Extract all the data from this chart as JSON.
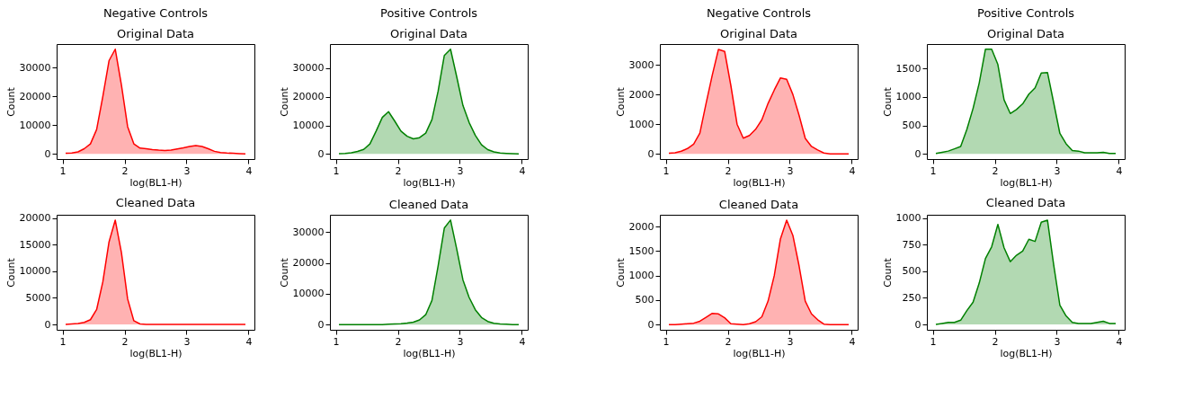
{
  "chart_data": [
    {
      "type": "area",
      "title": "Negative Controls",
      "subtitle": "Original Data",
      "xlabel": "log(BL1-H)",
      "ylabel": "Count",
      "x": [
        1.05,
        1.15,
        1.25,
        1.35,
        1.45,
        1.55,
        1.65,
        1.75,
        1.85,
        1.95,
        2.05,
        2.15,
        2.25,
        2.35,
        2.45,
        2.55,
        2.65,
        2.75,
        2.85,
        2.95,
        3.05,
        3.15,
        3.25,
        3.35,
        3.45,
        3.55,
        3.65,
        3.75,
        3.85,
        3.95
      ],
      "series": [
        {
          "color": "#ff0000",
          "values": [
            200,
            300,
            700,
            1800,
            3500,
            8500,
            20000,
            32500,
            36500,
            24000,
            9500,
            3500,
            2000,
            1800,
            1500,
            1300,
            1200,
            1300,
            1700,
            2100,
            2600,
            2900,
            2600,
            1800,
            900,
            500,
            300,
            200,
            100,
            0
          ]
        }
      ],
      "xlim": [
        0.905,
        4.095
      ],
      "ylim": [
        -1800,
        38300
      ],
      "xticks": [
        1,
        2,
        3,
        4
      ],
      "yticks": [
        0,
        10000,
        20000,
        30000
      ],
      "grid": false
    },
    {
      "type": "area",
      "title": "Positive Controls",
      "subtitle": "Original Data",
      "xlabel": "log(BL1-H)",
      "ylabel": "Count",
      "x": [
        1.05,
        1.15,
        1.25,
        1.35,
        1.45,
        1.55,
        1.65,
        1.75,
        1.85,
        1.95,
        2.05,
        2.15,
        2.25,
        2.35,
        2.45,
        2.55,
        2.65,
        2.75,
        2.85,
        2.95,
        3.05,
        3.15,
        3.25,
        3.35,
        3.45,
        3.55,
        3.65,
        3.75,
        3.85,
        3.95
      ],
      "series": [
        {
          "color": "#008000",
          "values": [
            100,
            200,
            400,
            900,
            1600,
            3500,
            8000,
            12800,
            14800,
            11500,
            8000,
            6200,
            5300,
            5700,
            7300,
            12000,
            22000,
            34500,
            36700,
            27000,
            17000,
            11000,
            6500,
            3200,
            1500,
            700,
            300,
            200,
            100,
            0
          ]
        }
      ],
      "xlim": [
        0.905,
        4.095
      ],
      "ylim": [
        -1800,
        38500
      ],
      "xticks": [
        1,
        2,
        3,
        4
      ],
      "yticks": [
        0,
        10000,
        20000,
        30000
      ],
      "grid": false
    },
    {
      "type": "area",
      "title": "Negative Controls",
      "subtitle": "Original Data",
      "xlabel": "log(BL1-H)",
      "ylabel": "Count",
      "x": [
        1.05,
        1.15,
        1.25,
        1.35,
        1.45,
        1.55,
        1.65,
        1.75,
        1.85,
        1.95,
        2.05,
        2.15,
        2.25,
        2.35,
        2.45,
        2.55,
        2.65,
        2.75,
        2.85,
        2.95,
        3.05,
        3.15,
        3.25,
        3.35,
        3.45,
        3.55,
        3.65,
        3.75,
        3.85,
        3.95
      ],
      "series": [
        {
          "color": "#ff0000",
          "values": [
            20,
            40,
            90,
            180,
            330,
            700,
            1700,
            2650,
            3520,
            3450,
            2300,
            1000,
            530,
            620,
            830,
            1150,
            1700,
            2150,
            2560,
            2510,
            2000,
            1300,
            520,
            250,
            130,
            30,
            0,
            0,
            0,
            0
          ]
        }
      ],
      "xlim": [
        0.905,
        4.095
      ],
      "ylim": [
        -175,
        3700
      ],
      "xticks": [
        1,
        2,
        3,
        4
      ],
      "yticks": [
        0,
        1000,
        2000,
        3000
      ],
      "grid": false
    },
    {
      "type": "area",
      "title": "Positive Controls",
      "subtitle": "Original Data",
      "xlabel": "log(BL1-H)",
      "ylabel": "Count",
      "x": [
        1.05,
        1.15,
        1.25,
        1.35,
        1.45,
        1.55,
        1.65,
        1.75,
        1.85,
        1.95,
        2.05,
        2.15,
        2.25,
        2.35,
        2.45,
        2.55,
        2.65,
        2.75,
        2.85,
        2.95,
        3.05,
        3.15,
        3.25,
        3.35,
        3.45,
        3.55,
        3.65,
        3.75,
        3.85,
        3.95
      ],
      "series": [
        {
          "color": "#008000",
          "values": [
            10,
            30,
            50,
            90,
            130,
            430,
            800,
            1250,
            1840,
            1840,
            1570,
            950,
            710,
            780,
            880,
            1050,
            1160,
            1420,
            1430,
            900,
            360,
            180,
            60,
            50,
            20,
            20,
            20,
            30,
            10,
            10
          ]
        }
      ],
      "xlim": [
        0.905,
        4.095
      ],
      "ylim": [
        -90,
        1930
      ],
      "xticks": [
        1,
        2,
        3,
        4
      ],
      "yticks": [
        0,
        500,
        1000,
        1500
      ],
      "grid": false
    },
    {
      "type": "area",
      "title": "Cleaned Data",
      "xlabel": "log(BL1-H)",
      "ylabel": "Count",
      "x": [
        1.05,
        1.15,
        1.25,
        1.35,
        1.45,
        1.55,
        1.65,
        1.75,
        1.85,
        1.95,
        2.05,
        2.15,
        2.25,
        2.35,
        2.45,
        2.55,
        2.65,
        2.75,
        2.85,
        2.95,
        3.05,
        3.15,
        3.25,
        3.35,
        3.45,
        3.55,
        3.65,
        3.75,
        3.85,
        3.95
      ],
      "series": [
        {
          "color": "#ff0000",
          "values": [
            0,
            100,
            200,
            400,
            900,
            2800,
            8000,
            15500,
            19600,
            13500,
            4800,
            700,
            100,
            0,
            0,
            0,
            0,
            0,
            0,
            0,
            0,
            0,
            0,
            0,
            0,
            0,
            0,
            0,
            0,
            0
          ]
        }
      ],
      "xlim": [
        0.905,
        4.095
      ],
      "ylim": [
        -1000,
        20600
      ],
      "xticks": [
        1,
        2,
        3,
        4
      ],
      "yticks": [
        0,
        5000,
        10000,
        15000,
        20000
      ],
      "grid": false
    },
    {
      "type": "area",
      "title": "Cleaned Data",
      "xlabel": "log(BL1-H)",
      "ylabel": "Count",
      "x": [
        1.05,
        1.15,
        1.25,
        1.35,
        1.45,
        1.55,
        1.65,
        1.75,
        1.85,
        1.95,
        2.05,
        2.15,
        2.25,
        2.35,
        2.45,
        2.55,
        2.65,
        2.75,
        2.85,
        2.95,
        3.05,
        3.15,
        3.25,
        3.35,
        3.45,
        3.55,
        3.65,
        3.75,
        3.85,
        3.95
      ],
      "series": [
        {
          "color": "#008000",
          "values": [
            0,
            0,
            0,
            0,
            0,
            0,
            0,
            0,
            100,
            200,
            300,
            500,
            800,
            1500,
            3200,
            7800,
            19000,
            31300,
            33900,
            24500,
            14500,
            8800,
            4800,
            2300,
            1000,
            400,
            200,
            100,
            0,
            0
          ]
        }
      ],
      "xlim": [
        0.905,
        4.095
      ],
      "ylim": [
        -1700,
        35600
      ],
      "xticks": [
        1,
        2,
        3,
        4
      ],
      "yticks": [
        0,
        10000,
        20000,
        30000
      ],
      "grid": false
    },
    {
      "type": "area",
      "title": "Cleaned Data",
      "xlabel": "log(BL1-H)",
      "ylabel": "Count",
      "x": [
        1.05,
        1.15,
        1.25,
        1.35,
        1.45,
        1.55,
        1.65,
        1.75,
        1.85,
        1.95,
        2.05,
        2.15,
        2.25,
        2.35,
        2.45,
        2.55,
        2.65,
        2.75,
        2.85,
        2.95,
        3.05,
        3.15,
        3.25,
        3.35,
        3.45,
        3.55,
        3.65,
        3.75,
        3.85,
        3.95
      ],
      "series": [
        {
          "color": "#ff0000",
          "values": [
            0,
            0,
            10,
            20,
            30,
            70,
            150,
            230,
            220,
            140,
            20,
            10,
            0,
            20,
            60,
            160,
            480,
            1000,
            1750,
            2130,
            1820,
            1200,
            480,
            220,
            100,
            10,
            0,
            0,
            0,
            0
          ]
        }
      ],
      "xlim": [
        0.905,
        4.095
      ],
      "ylim": [
        -105,
        2240
      ],
      "xticks": [
        1,
        2,
        3,
        4
      ],
      "yticks": [
        0,
        500,
        1000,
        1500,
        2000
      ],
      "grid": false
    },
    {
      "type": "area",
      "title": "Cleaned Data",
      "xlabel": "log(BL1-H)",
      "ylabel": "Count",
      "x": [
        1.05,
        1.15,
        1.25,
        1.35,
        1.45,
        1.55,
        1.65,
        1.75,
        1.85,
        1.95,
        2.05,
        2.15,
        2.25,
        2.35,
        2.45,
        2.55,
        2.65,
        2.75,
        2.85,
        2.95,
        3.05,
        3.15,
        3.25,
        3.35,
        3.45,
        3.55,
        3.65,
        3.75,
        3.85,
        3.95
      ],
      "series": [
        {
          "color": "#008000",
          "values": [
            0,
            10,
            20,
            20,
            40,
            130,
            210,
            390,
            620,
            730,
            940,
            720,
            590,
            650,
            690,
            800,
            780,
            960,
            980,
            560,
            180,
            80,
            20,
            10,
            10,
            10,
            20,
            30,
            10,
            10
          ]
        }
      ],
      "xlim": [
        0.905,
        4.095
      ],
      "ylim": [
        -50,
        1030
      ],
      "xticks": [
        1,
        2,
        3,
        4
      ],
      "yticks": [
        0,
        250,
        500,
        750,
        1000
      ],
      "grid": false
    }
  ]
}
